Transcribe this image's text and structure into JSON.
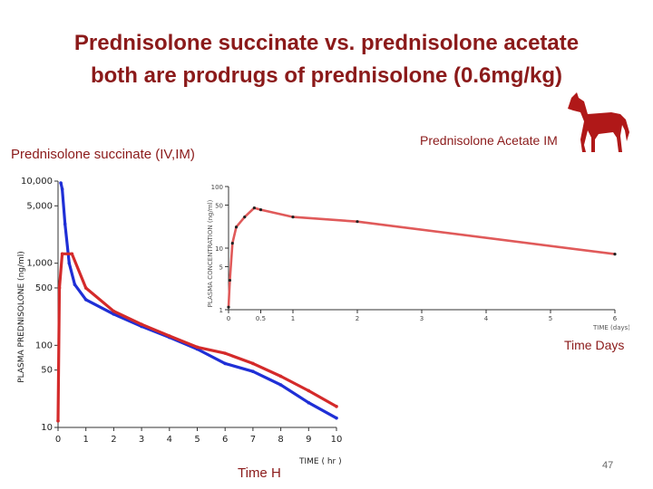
{
  "slide": {
    "title_line1": "Prednisolone succinate vs. prednisolone acetate",
    "title_line2": "both are prodrugs of prednisolone (0.6mg/kg)",
    "left_label": "Prednisolone succinate (IV,IM)",
    "right_label": "Prednisolone Acetate IM",
    "time_days_label": "Time Days",
    "time_h_label": "Time H",
    "page_number": "47",
    "horse_icon": "horse-icon",
    "colors": {
      "title": "#8b1a1a",
      "iv": "#1f2fd6",
      "im": "#d42a2a",
      "acetate": "#e05a5a",
      "horse": "#b01818"
    }
  },
  "chart_data": [
    {
      "type": "line",
      "yscale": "log",
      "xlabel": "TIME ( hr )",
      "ylabel": "PLASMA PREDNISOLONE (ng/ml)",
      "xlim": [
        0,
        10
      ],
      "ylim": [
        10,
        10000
      ],
      "x_ticks": [
        "0",
        "1",
        "2",
        "3",
        "4",
        "5",
        "6",
        "7",
        "8",
        "9",
        "10"
      ],
      "y_ticks": [
        {
          "value": 10000,
          "label": "10,000"
        },
        {
          "value": 5000,
          "label": "5,000"
        },
        {
          "value": 1000,
          "label": "1,000"
        },
        {
          "value": 500,
          "label": "500"
        },
        {
          "value": 100,
          "label": "100"
        },
        {
          "value": 50,
          "label": "50"
        },
        {
          "value": 10,
          "label": "10"
        }
      ],
      "series": [
        {
          "color": "#1f2fd6",
          "x": [
            0.1,
            0.15,
            0.25,
            0.4,
            0.6,
            1.0,
            2.0,
            3.0,
            4.0,
            5.0,
            6.0,
            7.0,
            8.0,
            9.0,
            10.0
          ],
          "y": [
            9500,
            8000,
            3000,
            1000,
            550,
            360,
            240,
            170,
            125,
            90,
            60,
            48,
            33,
            20,
            13
          ]
        },
        {
          "color": "#d42a2a",
          "x": [
            0.0,
            0.05,
            0.15,
            0.5,
            1.0,
            2.0,
            3.0,
            4.0,
            5.0,
            6.0,
            7.0,
            8.0,
            9.0,
            10.0
          ],
          "y": [
            12,
            500,
            1300,
            1300,
            500,
            260,
            180,
            130,
            95,
            80,
            60,
            42,
            28,
            18
          ]
        }
      ]
    },
    {
      "type": "line",
      "yscale": "log",
      "xlabel": "TIME (days)",
      "ylabel": "PLASMA CONCENTRATION (ng/ml)",
      "xlim": [
        0,
        6
      ],
      "ylim": [
        1,
        100
      ],
      "x_ticks": [
        "0",
        "0.5",
        "1",
        "2",
        "3",
        "4",
        "5",
        "6"
      ],
      "y_ticks": [
        {
          "value": 1,
          "label": "1"
        },
        {
          "value": 5,
          "label": "5"
        },
        {
          "value": 10,
          "label": "10"
        },
        {
          "value": 50,
          "label": "50"
        },
        {
          "value": 100,
          "label": "100"
        }
      ],
      "series": [
        {
          "color": "#e05a5a",
          "x": [
            0.0,
            0.02,
            0.06,
            0.12,
            0.25,
            0.4,
            0.5,
            1.0,
            2.0,
            6.0
          ],
          "y": [
            1.1,
            3.0,
            12,
            22,
            32,
            45,
            42,
            32,
            27,
            8
          ]
        }
      ]
    }
  ]
}
